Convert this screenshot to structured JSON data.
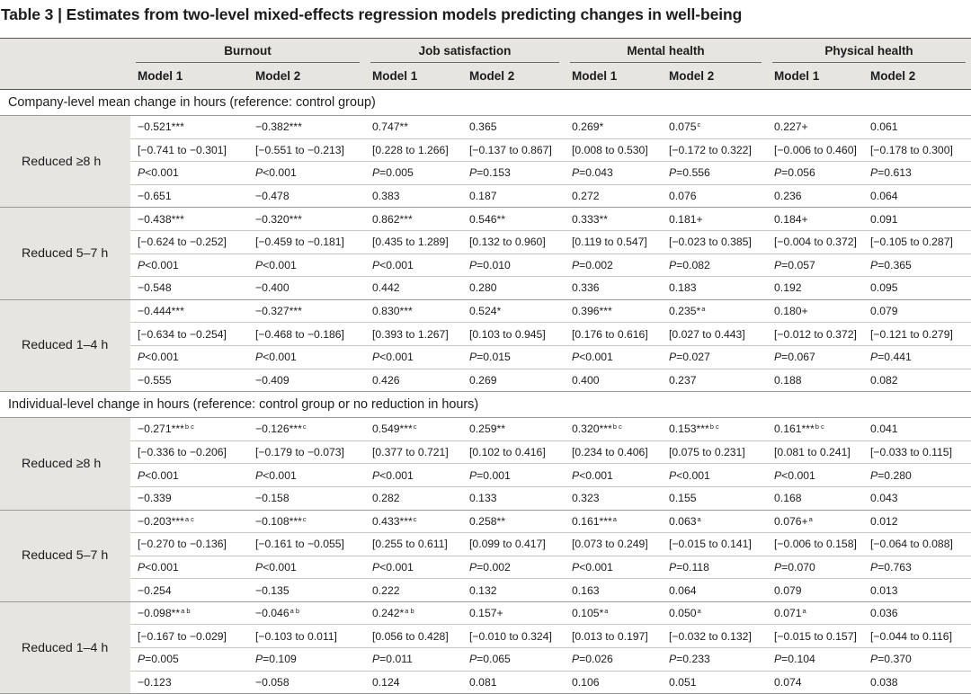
{
  "title": "Table 3 | Estimates from two-level mixed-effects regression models predicting changes in well-being",
  "groups": [
    "Burnout",
    "Job satisfaction",
    "Mental health",
    "Physical health"
  ],
  "models": [
    "Model 1",
    "Model 2",
    "Model 1",
    "Model 2",
    "Model 1",
    "Model 2",
    "Model 1",
    "Model 2"
  ],
  "sections": [
    {
      "label": "Company-level mean change in hours (reference: control group)",
      "blocks": [
        {
          "label": "Reduced ≥8 h",
          "rows": [
            [
              [
                "−0.521***",
                ""
              ],
              [
                "−0.382***",
                ""
              ],
              [
                "0.747**",
                ""
              ],
              [
                "0.365",
                ""
              ],
              [
                "0.269*",
                ""
              ],
              [
                "0.075",
                "c"
              ],
              [
                "0.227+",
                ""
              ],
              [
                "0.061",
                ""
              ]
            ],
            [
              [
                "[−0.741 to −0.301]",
                ""
              ],
              [
                "[−0.551 to −0.213]",
                ""
              ],
              [
                "[0.228 to 1.266]",
                ""
              ],
              [
                "[−0.137 to 0.867]",
                ""
              ],
              [
                "[0.008 to 0.530]",
                ""
              ],
              [
                "[−0.172 to 0.322]",
                ""
              ],
              [
                "[−0.006 to 0.460]",
                ""
              ],
              [
                "[−0.178 to 0.300]",
                ""
              ]
            ],
            [
              [
                "P",
                "<0.001"
              ],
              [
                "P",
                "<0.001"
              ],
              [
                "P",
                "=0.005"
              ],
              [
                "P",
                "=0.153"
              ],
              [
                "P",
                "=0.043"
              ],
              [
                "P",
                "=0.556"
              ],
              [
                "P",
                "=0.056"
              ],
              [
                "P",
                "=0.613"
              ]
            ],
            [
              [
                "−0.651",
                ""
              ],
              [
                "−0.478",
                ""
              ],
              [
                "0.383",
                ""
              ],
              [
                "0.187",
                ""
              ],
              [
                "0.272",
                ""
              ],
              [
                "0.076",
                ""
              ],
              [
                "0.236",
                ""
              ],
              [
                "0.064",
                ""
              ]
            ]
          ]
        },
        {
          "label": "Reduced 5–7 h",
          "rows": [
            [
              [
                "−0.438***",
                ""
              ],
              [
                "−0.320***",
                ""
              ],
              [
                "0.862***",
                ""
              ],
              [
                "0.546**",
                ""
              ],
              [
                "0.333**",
                ""
              ],
              [
                "0.181+",
                ""
              ],
              [
                "0.184+",
                ""
              ],
              [
                "0.091",
                ""
              ]
            ],
            [
              [
                "[−0.624 to −0.252]",
                ""
              ],
              [
                "[−0.459 to −0.181]",
                ""
              ],
              [
                "[0.435 to 1.289]",
                ""
              ],
              [
                "[0.132 to 0.960]",
                ""
              ],
              [
                "[0.119 to 0.547]",
                ""
              ],
              [
                "[−0.023 to 0.385]",
                ""
              ],
              [
                "[−0.004 to 0.372]",
                ""
              ],
              [
                "[−0.105 to 0.287]",
                ""
              ]
            ],
            [
              [
                "P",
                "<0.001"
              ],
              [
                "P",
                "<0.001"
              ],
              [
                "P",
                "<0.001"
              ],
              [
                "P",
                "=0.010"
              ],
              [
                "P",
                "=0.002"
              ],
              [
                "P",
                "=0.082"
              ],
              [
                "P",
                "=0.057"
              ],
              [
                "P",
                "=0.365"
              ]
            ],
            [
              [
                "−0.548",
                ""
              ],
              [
                "−0.400",
                ""
              ],
              [
                "0.442",
                ""
              ],
              [
                "0.280",
                ""
              ],
              [
                "0.336",
                ""
              ],
              [
                "0.183",
                ""
              ],
              [
                "0.192",
                ""
              ],
              [
                "0.095",
                ""
              ]
            ]
          ]
        },
        {
          "label": "Reduced 1–4 h",
          "rows": [
            [
              [
                "−0.444***",
                ""
              ],
              [
                "−0.327***",
                ""
              ],
              [
                "0.830***",
                ""
              ],
              [
                "0.524*",
                ""
              ],
              [
                "0.396***",
                ""
              ],
              [
                "0.235*",
                "a"
              ],
              [
                "0.180+",
                ""
              ],
              [
                "0.079",
                ""
              ]
            ],
            [
              [
                "[−0.634 to −0.254]",
                ""
              ],
              [
                "[−0.468 to −0.186]",
                ""
              ],
              [
                "[0.393 to 1.267]",
                ""
              ],
              [
                "[0.103 to 0.945]",
                ""
              ],
              [
                "[0.176 to 0.616]",
                ""
              ],
              [
                "[0.027 to 0.443]",
                ""
              ],
              [
                "[−0.012 to 0.372]",
                ""
              ],
              [
                "[−0.121 to 0.279]",
                ""
              ]
            ],
            [
              [
                "P",
                "<0.001"
              ],
              [
                "P",
                "<0.001"
              ],
              [
                "P",
                "<0.001"
              ],
              [
                "P",
                "=0.015"
              ],
              [
                "P",
                "<0.001"
              ],
              [
                "P",
                "=0.027"
              ],
              [
                "P",
                "=0.067"
              ],
              [
                "P",
                "=0.441"
              ]
            ],
            [
              [
                "−0.555",
                ""
              ],
              [
                "−0.409",
                ""
              ],
              [
                "0.426",
                ""
              ],
              [
                "0.269",
                ""
              ],
              [
                "0.400",
                ""
              ],
              [
                "0.237",
                ""
              ],
              [
                "0.188",
                ""
              ],
              [
                "0.082",
                ""
              ]
            ]
          ]
        }
      ]
    },
    {
      "label": "Individual-level change in hours (reference: control group or no reduction in hours)",
      "blocks": [
        {
          "label": "Reduced ≥8 h",
          "rows": [
            [
              [
                "−0.271***",
                "b c"
              ],
              [
                "−0.126***",
                "c"
              ],
              [
                "0.549***",
                "c"
              ],
              [
                "0.259**",
                ""
              ],
              [
                "0.320***",
                "b c"
              ],
              [
                "0.153***",
                "b c"
              ],
              [
                "0.161***",
                "b c"
              ],
              [
                "0.041",
                ""
              ]
            ],
            [
              [
                "[−0.336 to −0.206]",
                ""
              ],
              [
                "[−0.179 to −0.073]",
                ""
              ],
              [
                "[0.377 to 0.721]",
                ""
              ],
              [
                "[0.102 to 0.416]",
                ""
              ],
              [
                "[0.234 to 0.406]",
                ""
              ],
              [
                "[0.075 to 0.231]",
                ""
              ],
              [
                "[0.081 to 0.241]",
                ""
              ],
              [
                "[−0.033 to 0.115]",
                ""
              ]
            ],
            [
              [
                "P",
                "<0.001"
              ],
              [
                "P",
                "<0.001"
              ],
              [
                "P",
                "<0.001"
              ],
              [
                "P",
                "=0.001"
              ],
              [
                "P",
                "<0.001"
              ],
              [
                "P",
                "<0.001"
              ],
              [
                "P",
                "<0.001"
              ],
              [
                "P",
                "=0.280"
              ]
            ],
            [
              [
                "−0.339",
                ""
              ],
              [
                "−0.158",
                ""
              ],
              [
                "0.282",
                ""
              ],
              [
                "0.133",
                ""
              ],
              [
                "0.323",
                ""
              ],
              [
                "0.155",
                ""
              ],
              [
                "0.168",
                ""
              ],
              [
                "0.043",
                ""
              ]
            ]
          ]
        },
        {
          "label": "Reduced 5–7 h",
          "rows": [
            [
              [
                "−0.203***",
                "a c"
              ],
              [
                "−0.108***",
                "c"
              ],
              [
                "0.433***",
                "c"
              ],
              [
                "0.258**",
                ""
              ],
              [
                "0.161***",
                "a"
              ],
              [
                "0.063",
                "a"
              ],
              [
                "0.076+",
                "a"
              ],
              [
                "0.012",
                ""
              ]
            ],
            [
              [
                "[−0.270 to −0.136]",
                ""
              ],
              [
                "[−0.161 to −0.055]",
                ""
              ],
              [
                "[0.255 to 0.611]",
                ""
              ],
              [
                "[0.099 to 0.417]",
                ""
              ],
              [
                "[0.073 to 0.249]",
                ""
              ],
              [
                "[−0.015 to 0.141]",
                ""
              ],
              [
                "[−0.006 to 0.158]",
                ""
              ],
              [
                "[−0.064 to 0.088]",
                ""
              ]
            ],
            [
              [
                "P",
                "<0.001"
              ],
              [
                "P",
                "<0.001"
              ],
              [
                "P",
                "<0.001"
              ],
              [
                "P",
                "=0.002"
              ],
              [
                "P",
                "<0.001"
              ],
              [
                "P",
                "=0.118"
              ],
              [
                "P",
                "=0.070"
              ],
              [
                "P",
                "=0.763"
              ]
            ],
            [
              [
                "−0.254",
                ""
              ],
              [
                "−0.135",
                ""
              ],
              [
                "0.222",
                ""
              ],
              [
                "0.132",
                ""
              ],
              [
                "0.163",
                ""
              ],
              [
                "0.064",
                ""
              ],
              [
                "0.079",
                ""
              ],
              [
                "0.013",
                ""
              ]
            ]
          ]
        },
        {
          "label": "Reduced 1–4 h",
          "rows": [
            [
              [
                "−0.098**",
                "a b"
              ],
              [
                "−0.046",
                "a b"
              ],
              [
                "0.242*",
                "a b"
              ],
              [
                "0.157+",
                ""
              ],
              [
                "0.105*",
                "a"
              ],
              [
                "0.050",
                "a"
              ],
              [
                "0.071",
                "a"
              ],
              [
                "0.036",
                ""
              ]
            ],
            [
              [
                "[−0.167 to −0.029]",
                ""
              ],
              [
                "[−0.103 to 0.011]",
                ""
              ],
              [
                "[0.056 to 0.428]",
                ""
              ],
              [
                "[−0.010 to 0.324]",
                ""
              ],
              [
                "[0.013 to 0.197]",
                ""
              ],
              [
                "[−0.032 to 0.132]",
                ""
              ],
              [
                "[−0.015 to 0.157]",
                ""
              ],
              [
                "[−0.044 to 0.116]",
                ""
              ]
            ],
            [
              [
                "P",
                "=0.005"
              ],
              [
                "P",
                "=0.109"
              ],
              [
                "P",
                "=0.011"
              ],
              [
                "P",
                "=0.065"
              ],
              [
                "P",
                "=0.026"
              ],
              [
                "P",
                "=0.233"
              ],
              [
                "P",
                "=0.104"
              ],
              [
                "P",
                "=0.370"
              ]
            ],
            [
              [
                "−0.123",
                ""
              ],
              [
                "−0.058",
                ""
              ],
              [
                "0.124",
                ""
              ],
              [
                "0.081",
                ""
              ],
              [
                "0.106",
                ""
              ],
              [
                "0.051",
                ""
              ],
              [
                "0.074",
                ""
              ],
              [
                "0.038",
                ""
              ]
            ]
          ]
        }
      ]
    }
  ]
}
